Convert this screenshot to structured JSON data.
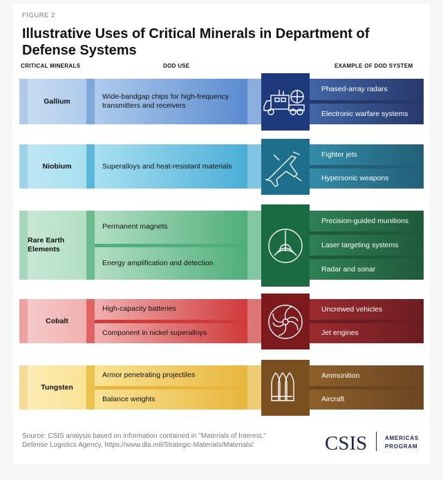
{
  "figure_label": "FIGURE 2",
  "title": "Illustrative Uses of Critical Minerals in Department of Defense Systems",
  "headers": {
    "minerals": "CRITICAL MINERALS",
    "use": "DOD USE",
    "system": "EXAMPLE OF DOD SYSTEM"
  },
  "rows": [
    {
      "mineral": "Gallium",
      "uses": [
        "Wide-bandgap chips for high-frequency transmitters and receivers"
      ],
      "systems": [
        "Phased-array radars",
        "Electronic warfare systems"
      ],
      "icon": "radar-truck-icon",
      "colors": {
        "light": "#c8dcf0",
        "strip": "#7fa7da",
        "useA": "#aecbec",
        "useB": "#5a8bd0",
        "icon": "#1f3a7c",
        "sysA": "#4266a6",
        "sysB": "#27386b"
      }
    },
    {
      "mineral": "Niobium",
      "uses": [
        "Superalloys and heat-resistant materials"
      ],
      "systems": [
        "Fighter jets",
        "Hypersonic weapons"
      ],
      "icon": "fighter-jet-icon",
      "colors": {
        "light": "#bde6f3",
        "strip": "#5bb6da",
        "useA": "#a8e0f1",
        "useB": "#4aaed6",
        "icon": "#1d6f8c",
        "sysA": "#338ca8",
        "sysB": "#235f78"
      }
    },
    {
      "mineral": "Rare Earth Elements",
      "uses": [
        "Permanent magnets",
        "Energy amplification and detection"
      ],
      "systems": [
        "Precision-guided munitions",
        "Laser targeting systems",
        "Radar and sonar"
      ],
      "icon": "sonar-icon",
      "colors": {
        "light": "#c8e8d5",
        "strip": "#6bbb8e",
        "useA": "#b2dfc3",
        "useB": "#4fae7b",
        "icon": "#1b6b42",
        "sysA": "#2f8054",
        "sysB": "#1f5a3b"
      }
    },
    {
      "mineral": "Cobalt",
      "uses": [
        "High-capacity batteries",
        "Component in nickel superalloys"
      ],
      "systems": [
        "Uncrewed vehicles",
        "Jet engines"
      ],
      "icon": "turbine-icon",
      "colors": {
        "light": "#f5c9c9",
        "strip": "#e06464",
        "useA": "#f2b0b0",
        "useB": "#cf3a3a",
        "icon": "#7d1a1e",
        "sysA": "#9b2b2f",
        "sysB": "#6c1d21"
      }
    },
    {
      "mineral": "Tungsten",
      "uses": [
        "Armor penetrating projectiles",
        "Balance weights"
      ],
      "systems": [
        "Ammunition",
        "Aircraft"
      ],
      "icon": "bullets-icon",
      "colors": {
        "light": "#fcecb4",
        "strip": "#ecc24e",
        "useA": "#f9e394",
        "useB": "#e8b63c",
        "icon": "#7a5020",
        "sysA": "#8e602b",
        "sysB": "#6b4621"
      }
    }
  ],
  "source": "Source: CSIS analysis based on information contained in \"Materials of Interest,\" Defense Logistics Agency, https://www.dla.mil/Strategic-Materials/Materials/.",
  "logo": {
    "name": "CSIS",
    "program": "AMERICAS PROGRAM"
  }
}
